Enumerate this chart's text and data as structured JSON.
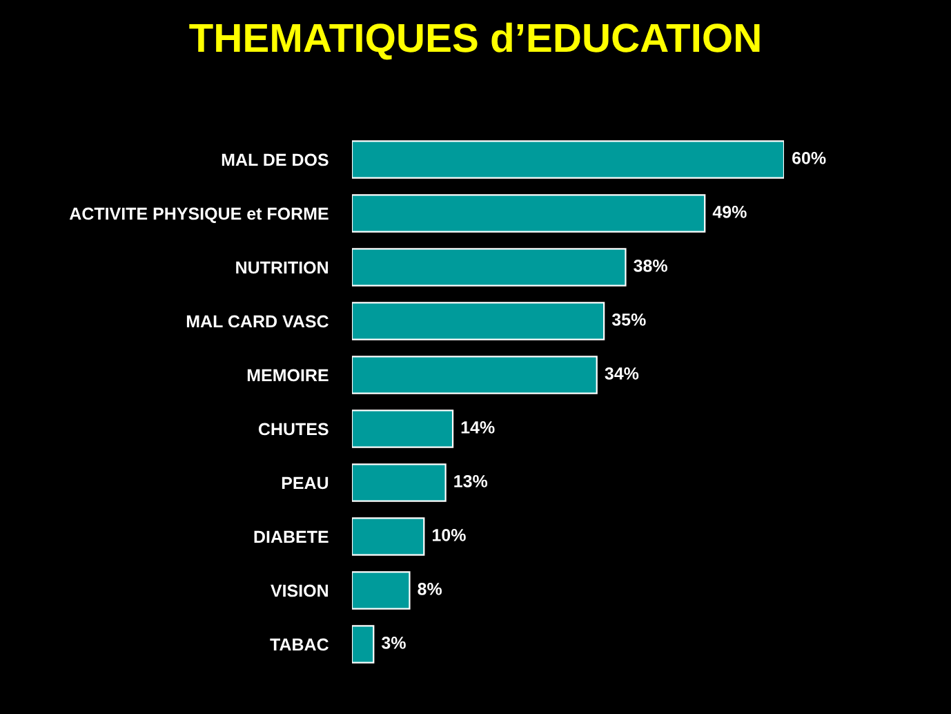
{
  "chart_data": {
    "type": "bar",
    "orientation": "horizontal",
    "title": "THEMATIQUES d’EDUCATION",
    "categories": [
      "MAL DE DOS",
      "ACTIVITE PHYSIQUE et FORME",
      "NUTRITION",
      "MAL CARD VASC",
      "MEMOIRE",
      "CHUTES",
      "PEAU",
      "DIABETE",
      "VISION",
      "TABAC"
    ],
    "values": [
      60,
      49,
      38,
      35,
      34,
      14,
      13,
      10,
      8,
      3
    ],
    "value_labels": [
      "60%",
      "49%",
      "38%",
      "35%",
      "34%",
      "14%",
      "13%",
      "10%",
      "8%",
      "3%"
    ],
    "color": "#009b9b",
    "tick_labels": "y",
    "grid": false,
    "legend": false
  }
}
